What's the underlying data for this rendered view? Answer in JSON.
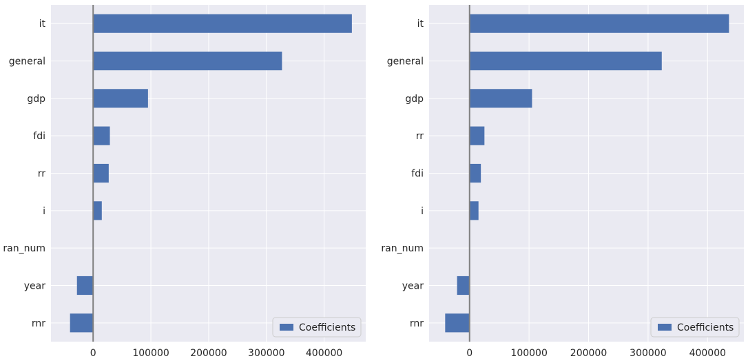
{
  "chart_data": [
    {
      "type": "bar",
      "orientation": "horizontal",
      "categories": [
        "it",
        "general",
        "gdp",
        "fdi",
        "rr",
        "i",
        "ran_num",
        "year",
        "rnr"
      ],
      "series": [
        {
          "name": "Coefficients",
          "values": [
            448000,
            327000,
            95000,
            29000,
            27000,
            15000,
            0,
            -28000,
            -40000
          ]
        }
      ],
      "xticks": [
        "0",
        "100000",
        "200000",
        "300000",
        "400000"
      ],
      "xlim": [
        -73000,
        472000
      ],
      "zero_line": true,
      "grid": true,
      "legend_position": "lower-right"
    },
    {
      "type": "bar",
      "orientation": "horizontal",
      "categories": [
        "it",
        "general",
        "gdp",
        "rr",
        "fdi",
        "i",
        "ran_num",
        "year",
        "rnr"
      ],
      "series": [
        {
          "name": "Coefficients",
          "values": [
            436000,
            323000,
            105000,
            25000,
            19000,
            15000,
            500,
            -21000,
            -41000
          ]
        }
      ],
      "xticks": [
        "0",
        "100000",
        "200000",
        "300000",
        "400000"
      ],
      "xlim": [
        -68000,
        461000
      ],
      "zero_line": true,
      "grid": true,
      "legend_position": "lower-right"
    }
  ],
  "colors": {
    "bar": "#4c72b0",
    "plot_background": "#eaeaf2",
    "grid": "#ffffff",
    "zero_line": "#808080"
  }
}
